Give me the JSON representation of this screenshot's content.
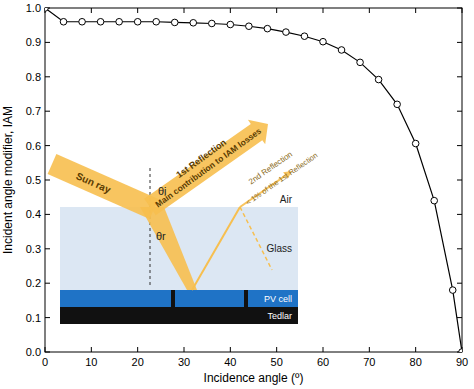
{
  "chart_data": {
    "type": "line",
    "x": [
      0,
      4,
      8,
      12,
      16,
      20,
      24,
      28,
      32,
      36,
      40,
      44,
      48,
      52,
      56,
      60,
      64,
      68,
      72,
      76,
      80,
      84,
      88,
      90
    ],
    "values": [
      1.0,
      0.96,
      0.96,
      0.96,
      0.96,
      0.96,
      0.96,
      0.958,
      0.957,
      0.955,
      0.952,
      0.947,
      0.94,
      0.93,
      0.918,
      0.902,
      0.878,
      0.842,
      0.792,
      0.72,
      0.606,
      0.44,
      0.18,
      0
    ],
    "color": "#000000",
    "marker": "circle",
    "xlim": [
      0,
      90
    ],
    "ylim": [
      0,
      1
    ],
    "xticks": [
      0,
      10,
      20,
      30,
      40,
      50,
      60,
      70,
      80,
      90
    ],
    "yticks": [
      {
        "value": 0,
        "label": "0.0"
      },
      {
        "value": 0.1,
        "label": "0.1"
      },
      {
        "value": 0.2,
        "label": "0.2"
      },
      {
        "value": 0.3,
        "label": "0.3"
      },
      {
        "value": 0.4,
        "label": "0.4"
      },
      {
        "value": 0.5,
        "label": "0.5"
      },
      {
        "value": 0.6,
        "label": "0.6"
      },
      {
        "value": 0.7,
        "label": "0.7"
      },
      {
        "value": 0.8,
        "label": "0.8"
      },
      {
        "value": 0.9,
        "label": "0.9"
      },
      {
        "value": 1,
        "label": "1.0"
      }
    ],
    "x_label": "Incidence angle (º)",
    "y_label": "Incident angle modifier, IAM",
    "annotations": [
      "Sun ray",
      "1st Reflection",
      "Main contribution to IAM losses",
      "2nd Reflection",
      "< 1% of the 1st Reflection",
      "Air",
      "Glass",
      "PV cell",
      "Tedlar",
      "θi",
      "θr"
    ]
  }
}
